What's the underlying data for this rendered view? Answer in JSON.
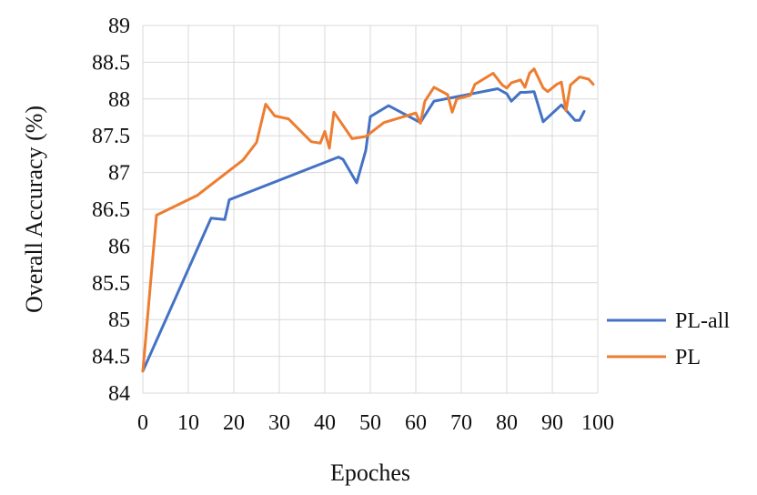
{
  "chart_data": {
    "type": "line",
    "title": "",
    "xlabel": "Epoches",
    "ylabel": "Overall Accuracy (%)",
    "xlim": [
      0,
      100
    ],
    "ylim": [
      84,
      89
    ],
    "xticks": [
      0,
      10,
      20,
      30,
      40,
      50,
      60,
      70,
      80,
      90,
      100
    ],
    "yticks": [
      84,
      84.5,
      85,
      85.5,
      86,
      86.5,
      87,
      87.5,
      88,
      88.5,
      89
    ],
    "grid": true,
    "legend_position": "right",
    "series": [
      {
        "name": "PL-all",
        "color": "#4472C4",
        "x": [
          0,
          15,
          18,
          19,
          43,
          44,
          47,
          49,
          50,
          54,
          61,
          64,
          78,
          80,
          81,
          83,
          84,
          86,
          88,
          92,
          95,
          96,
          97
        ],
        "y": [
          84.3,
          86.38,
          86.36,
          86.63,
          87.21,
          87.18,
          86.86,
          87.3,
          87.76,
          87.91,
          87.68,
          87.97,
          88.14,
          88.07,
          87.97,
          88.09,
          88.09,
          88.1,
          87.69,
          87.92,
          87.71,
          87.71,
          87.83
        ]
      },
      {
        "name": "PL",
        "color": "#ED7D31",
        "x": [
          0,
          3,
          12,
          22,
          25,
          27,
          29,
          32,
          37,
          39,
          40,
          41,
          42,
          46,
          49,
          53,
          60,
          61,
          62,
          64,
          67,
          68,
          69,
          72,
          73,
          77,
          79,
          80,
          81,
          82,
          83,
          84,
          85,
          86,
          88,
          89,
          91,
          92,
          93,
          94,
          96,
          98,
          99
        ],
        "y": [
          84.3,
          86.42,
          86.69,
          87.17,
          87.41,
          87.93,
          87.77,
          87.73,
          87.42,
          87.4,
          87.56,
          87.33,
          87.82,
          87.46,
          87.49,
          87.68,
          87.81,
          87.67,
          87.97,
          88.16,
          88.06,
          87.82,
          88.0,
          88.05,
          88.2,
          88.35,
          88.19,
          88.15,
          88.22,
          88.24,
          88.26,
          88.16,
          88.35,
          88.41,
          88.15,
          88.1,
          88.2,
          88.23,
          87.84,
          88.19,
          88.3,
          88.27,
          88.2
        ]
      }
    ]
  }
}
